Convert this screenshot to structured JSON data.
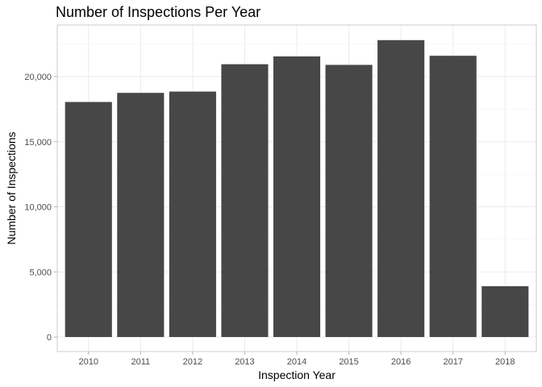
{
  "chart_data": {
    "type": "bar",
    "title": "Number of Inspections Per Year",
    "xlabel": "Inspection Year",
    "ylabel": "Number of Inspections",
    "categories": [
      "2010",
      "2011",
      "2012",
      "2013",
      "2014",
      "2015",
      "2016",
      "2017",
      "2018"
    ],
    "values": [
      18050,
      18750,
      18850,
      20950,
      21550,
      20900,
      22800,
      21600,
      3900
    ],
    "ylim": [
      0,
      23800
    ],
    "yticks": [
      0,
      5000,
      10000,
      15000,
      20000
    ],
    "ytick_labels": [
      "0",
      "5,000",
      "10,000",
      "15,000",
      "20,000"
    ],
    "bar_color": "#474747",
    "grid": true,
    "legend": "none"
  }
}
